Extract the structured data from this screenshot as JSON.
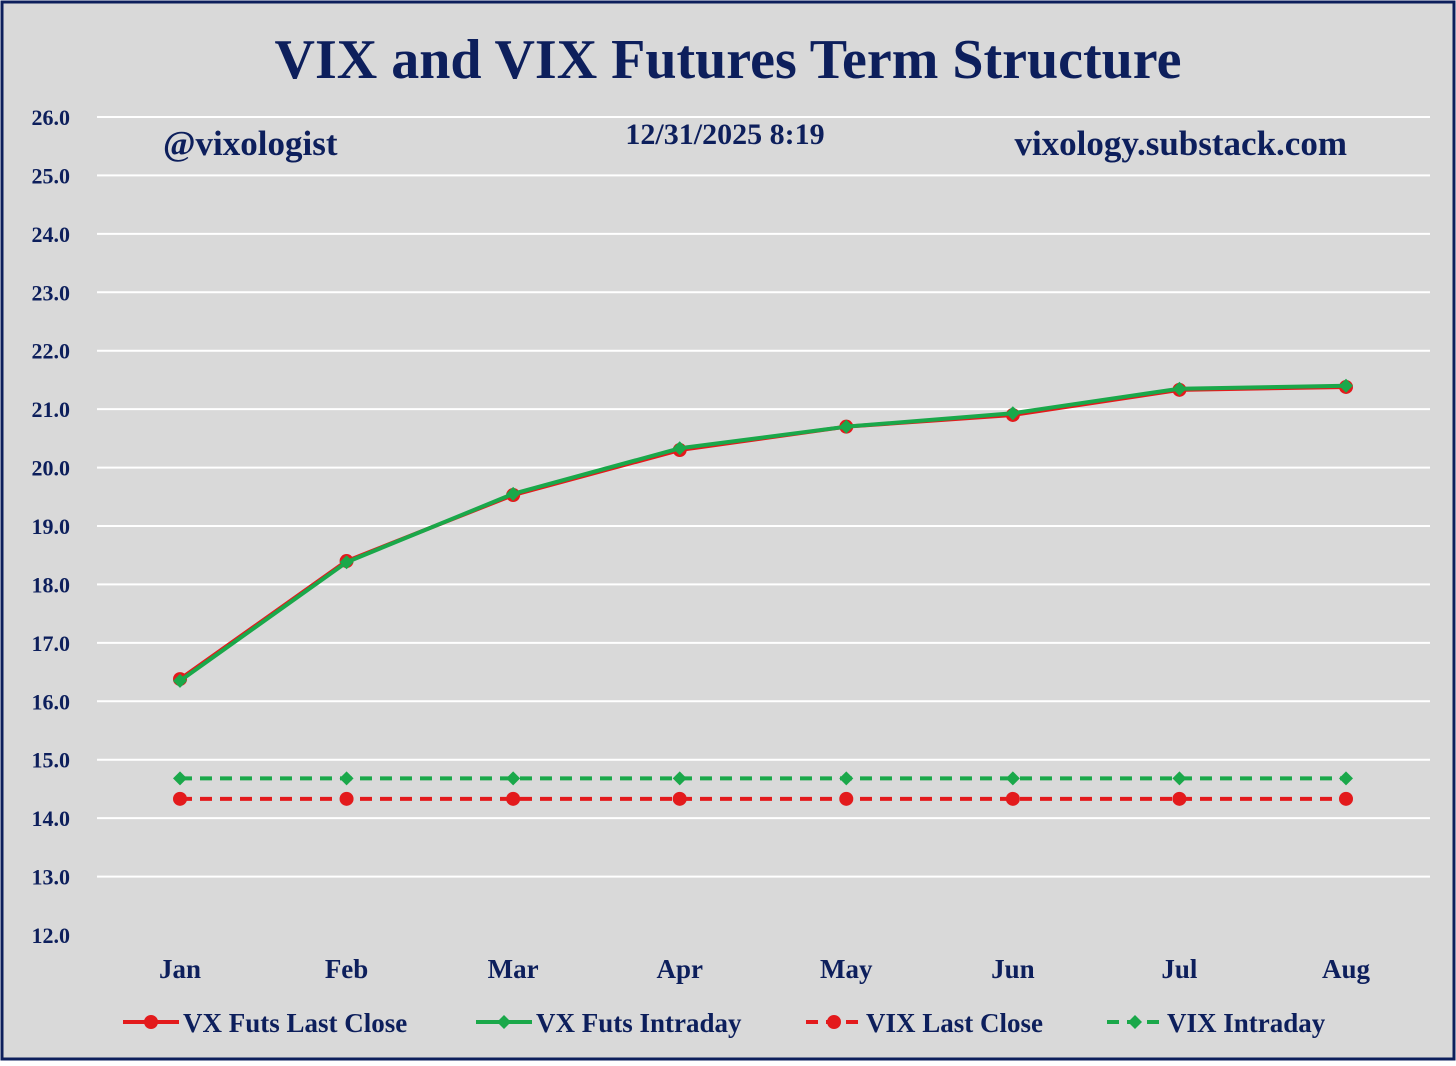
{
  "chart_data": {
    "type": "line",
    "title": "VIX and VIX Futures Term Structure",
    "annotations": {
      "handle": "@vixologist",
      "timestamp": "12/31/2025 8:19",
      "website": "vixology.substack.com"
    },
    "categories": [
      "Jan",
      "Feb",
      "Mar",
      "Apr",
      "May",
      "Jun",
      "Jul",
      "Aug"
    ],
    "ylim": [
      12.0,
      26.0
    ],
    "yticks": [
      "12.0",
      "13.0",
      "14.0",
      "15.0",
      "16.0",
      "17.0",
      "18.0",
      "19.0",
      "20.0",
      "21.0",
      "22.0",
      "23.0",
      "24.0",
      "25.0",
      "26.0"
    ],
    "grid": true,
    "legend_position": "bottom",
    "series": [
      {
        "name": "VX Futs Last Close",
        "color": "#e31a1c",
        "dashed": false,
        "marker": "circle",
        "values": [
          16.38,
          18.4,
          19.53,
          20.3,
          20.7,
          20.9,
          21.33,
          21.38
        ]
      },
      {
        "name": "VX Futs Intraday",
        "color": "#1aa84a",
        "dashed": false,
        "marker": "diamond",
        "values": [
          16.35,
          18.38,
          19.55,
          20.33,
          20.7,
          20.93,
          21.35,
          21.4
        ]
      },
      {
        "name": "VIX Last Close",
        "color": "#e31a1c",
        "dashed": true,
        "marker": "circle",
        "values": [
          14.33,
          14.33,
          14.33,
          14.33,
          14.33,
          14.33,
          14.33,
          14.33
        ]
      },
      {
        "name": "VIX Intraday",
        "color": "#1aa84a",
        "dashed": true,
        "marker": "diamond",
        "values": [
          14.68,
          14.68,
          14.68,
          14.68,
          14.68,
          14.68,
          14.68,
          14.68
        ]
      }
    ],
    "colors": {
      "text": "#0d1f5c",
      "background": "#d9d9d9",
      "grid": "#ffffff",
      "border": "#0d1f5c"
    }
  }
}
